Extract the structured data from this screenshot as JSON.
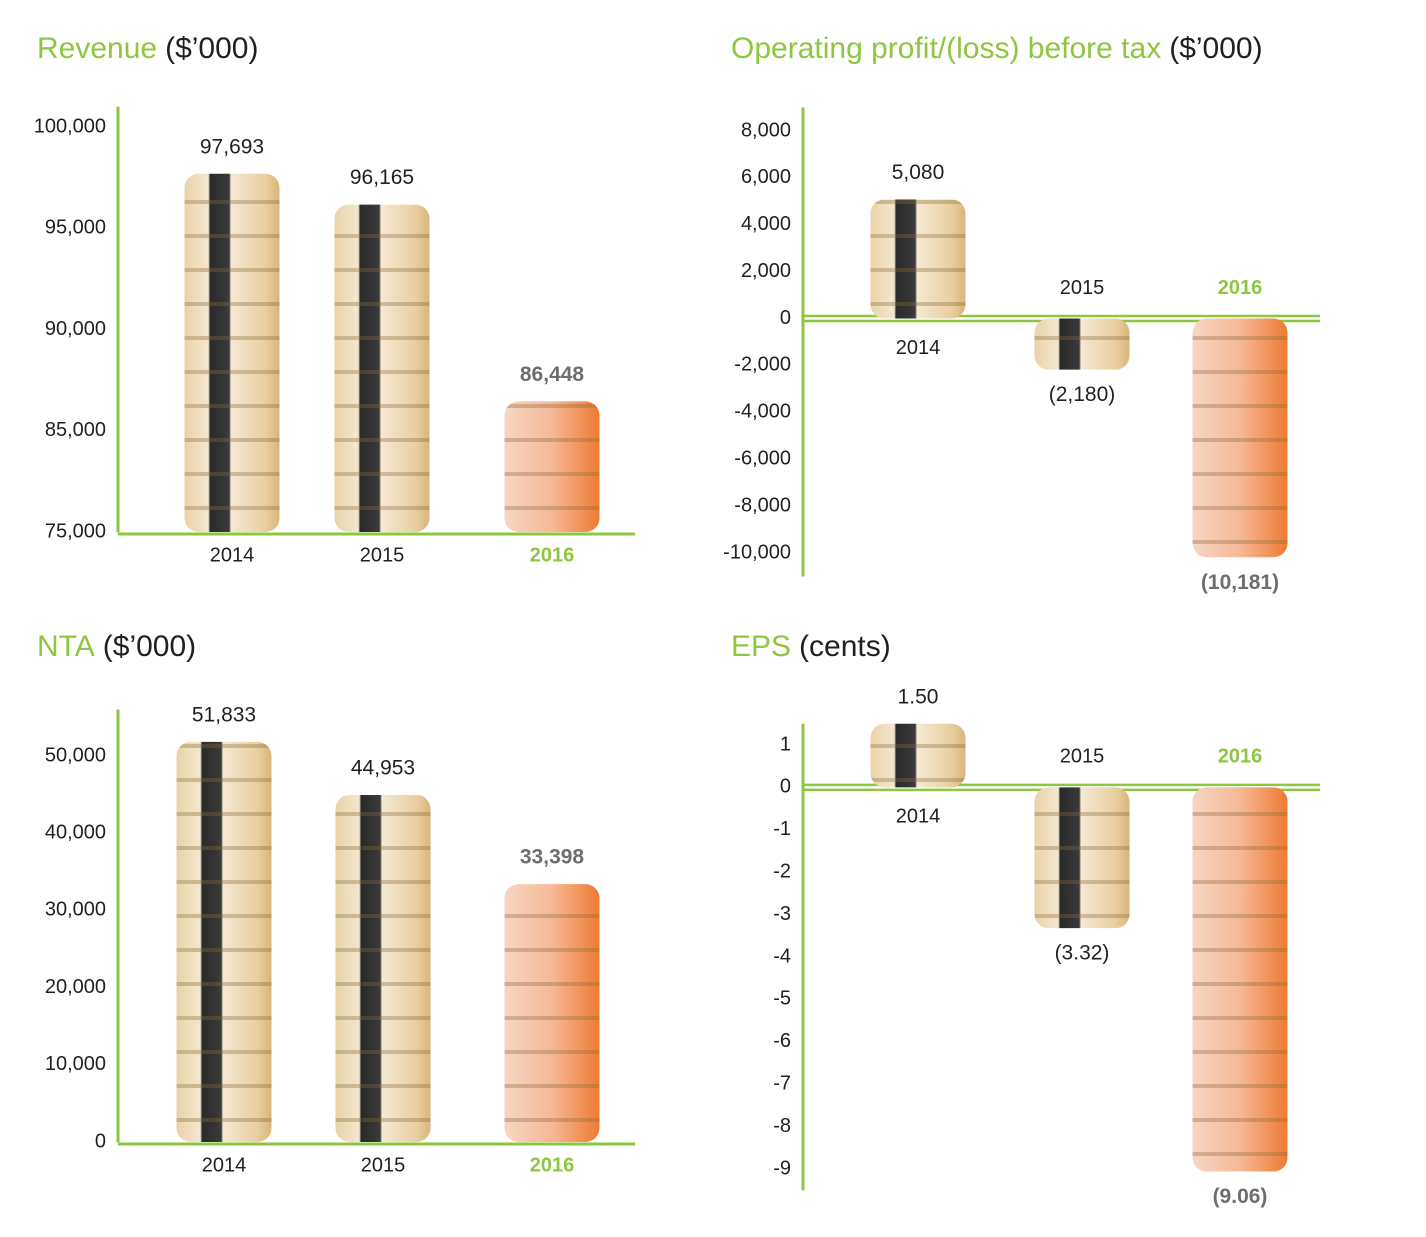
{
  "chart_data": [
    {
      "type": "bar",
      "title": "Revenue",
      "unit": "($’000)",
      "accent": "#8dc63f",
      "categories": [
        "2014",
        "2015",
        "2016"
      ],
      "values": [
        97693,
        96165,
        86448
      ],
      "value_labels": [
        "97,693",
        "96,165",
        "86,448"
      ],
      "ylim": [
        75000,
        101000
      ],
      "yticks": [
        {
          "value": 75000,
          "label": "75,000"
        },
        {
          "value": 85000,
          "label": "85,000"
        },
        {
          "value": 90000,
          "label": "90,000"
        },
        {
          "value": 95000,
          "label": "95,000"
        },
        {
          "value": 100000,
          "label": "100,000"
        }
      ]
    },
    {
      "type": "bar",
      "title": "Operating profit/(loss) before tax",
      "unit": "($’000)",
      "accent": "#8dc63f",
      "categories": [
        "2014",
        "2015",
        "2016"
      ],
      "values": [
        5080,
        -2180,
        -10181
      ],
      "value_labels": [
        "5,080",
        "(2,180)",
        "(10,181)"
      ],
      "ylim": [
        -11000,
        9000
      ],
      "yticks": [
        {
          "value": -10000,
          "label": "-10,000"
        },
        {
          "value": -8000,
          "label": "-8,000"
        },
        {
          "value": -6000,
          "label": "-6,000"
        },
        {
          "value": -4000,
          "label": "-4,000"
        },
        {
          "value": -2000,
          "label": "-2,000"
        },
        0,
        {
          "value": 2000,
          "label": "2,000"
        },
        {
          "value": 4000,
          "label": "4,000"
        },
        {
          "value": 6000,
          "label": "6,000"
        },
        {
          "value": 8000,
          "label": "8,000"
        }
      ]
    },
    {
      "type": "bar",
      "title": "NTA",
      "unit": "($’000)",
      "accent": "#8dc63f",
      "categories": [
        "2014",
        "2015",
        "2016"
      ],
      "values": [
        51833,
        44953,
        33398
      ],
      "value_labels": [
        "51,833",
        "44,953",
        "33,398"
      ],
      "ylim": [
        0,
        56000
      ],
      "yticks": [
        0,
        {
          "value": 10000,
          "label": "10,000"
        },
        {
          "value": 20000,
          "label": "20,000"
        },
        {
          "value": 30000,
          "label": "30,000"
        },
        {
          "value": 40000,
          "label": "40,000"
        },
        {
          "value": 50000,
          "label": "50,000"
        }
      ]
    },
    {
      "type": "bar",
      "title": "EPS",
      "unit": "(cents)",
      "accent": "#8dc63f",
      "categories": [
        "2014",
        "2015",
        "2016"
      ],
      "values": [
        1.5,
        -3.32,
        -9.06
      ],
      "value_labels": [
        "1.50",
        "(3.32)",
        "(9.06)"
      ],
      "ylim": [
        -9.5,
        1.5
      ],
      "yticks": [
        -9,
        -8,
        -7,
        -6,
        -5,
        -4,
        -3,
        -2,
        -1,
        0,
        1
      ]
    }
  ]
}
